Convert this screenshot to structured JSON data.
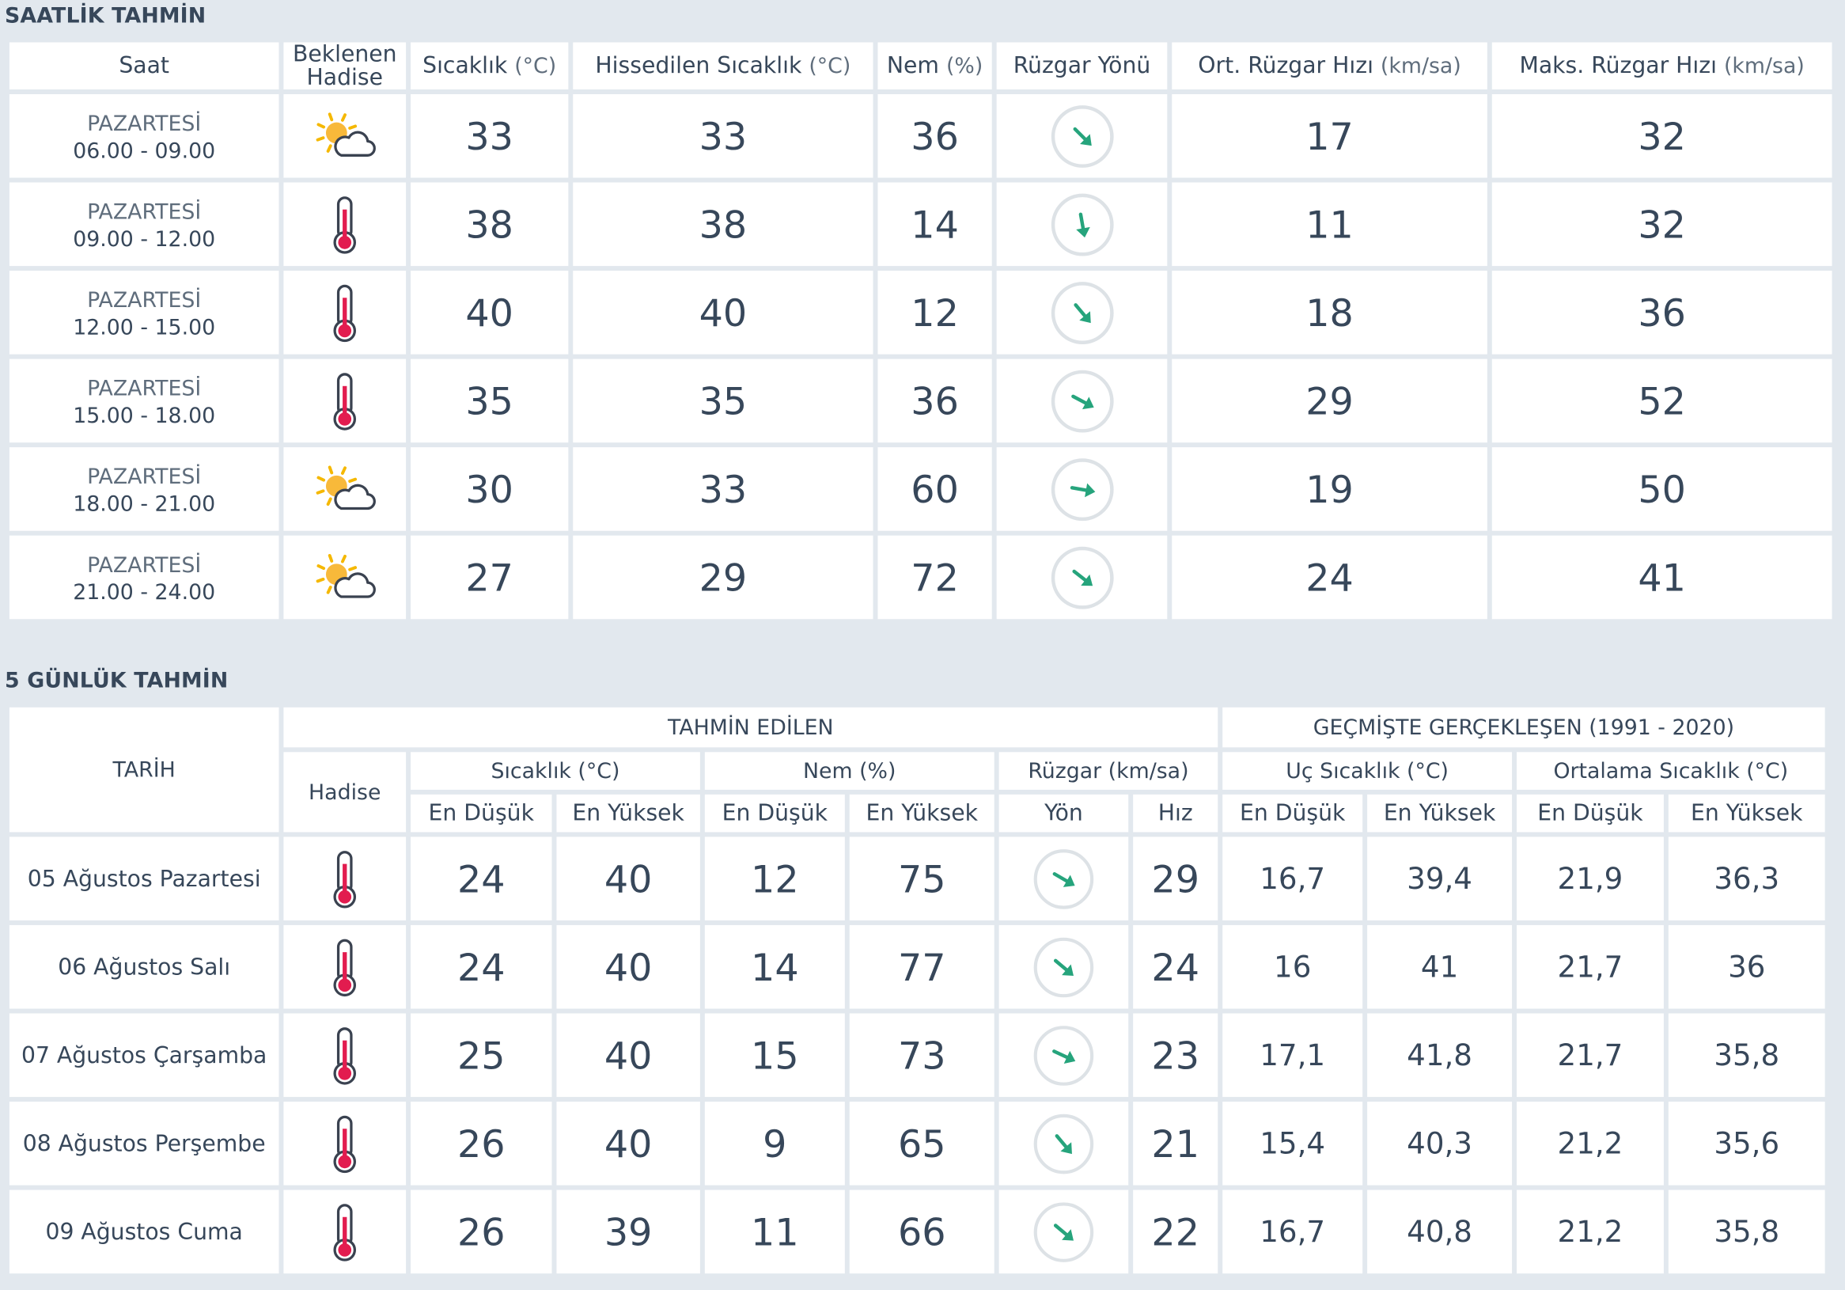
{
  "colors": {
    "temperature": "#d7264b",
    "humidity": "#6154a3",
    "wind": "#24a27a",
    "min": "#277ab0",
    "humidity_min": "#e2980e",
    "background": "#e2e8ee"
  },
  "hourly": {
    "title": "SAATLİK TAHMİN",
    "headers": {
      "saat": "Saat",
      "hadise_line1": "Beklenen",
      "hadise_line2": "Hadise",
      "sicaklik": "Sıcaklık",
      "sicaklik_unit": "(°C)",
      "hissedilen": "Hissedilen Sıcaklık",
      "hissedilen_unit": "(°C)",
      "nem": "Nem",
      "nem_unit": "(%)",
      "ruzgar_yonu": "Rüzgar Yönü",
      "ort_ruzgar": "Ort. Rüzgar Hızı",
      "ort_ruzgar_unit": "(km/sa)",
      "maks_ruzgar": "Maks. Rüzgar Hızı",
      "maks_ruzgar_unit": "(km/sa)"
    },
    "rows": [
      {
        "day": "PAZARTESİ",
        "time": "06.00 - 09.00",
        "icon": "partly-cloudy-icon",
        "temp": "33",
        "feels": "33",
        "humidity": "36",
        "wind_dir_deg": 135,
        "avg_wind": "17",
        "max_wind": "32"
      },
      {
        "day": "PAZARTESİ",
        "time": "09.00 - 12.00",
        "icon": "thermometer-icon",
        "temp": "38",
        "feels": "38",
        "humidity": "14",
        "wind_dir_deg": 170,
        "avg_wind": "11",
        "max_wind": "32"
      },
      {
        "day": "PAZARTESİ",
        "time": "12.00 - 15.00",
        "icon": "thermometer-icon",
        "temp": "40",
        "feels": "40",
        "humidity": "12",
        "wind_dir_deg": 140,
        "avg_wind": "18",
        "max_wind": "36"
      },
      {
        "day": "PAZARTESİ",
        "time": "15.00 - 18.00",
        "icon": "thermometer-icon",
        "temp": "35",
        "feels": "35",
        "humidity": "36",
        "wind_dir_deg": 118,
        "avg_wind": "29",
        "max_wind": "52"
      },
      {
        "day": "PAZARTESİ",
        "time": "18.00 - 21.00",
        "icon": "partly-cloudy-icon",
        "temp": "30",
        "feels": "33",
        "humidity": "60",
        "wind_dir_deg": 100,
        "avg_wind": "19",
        "max_wind": "50"
      },
      {
        "day": "PAZARTESİ",
        "time": "21.00 - 24.00",
        "icon": "partly-cloudy-icon",
        "temp": "27",
        "feels": "29",
        "humidity": "72",
        "wind_dir_deg": 128,
        "avg_wind": "24",
        "max_wind": "41"
      }
    ]
  },
  "daily": {
    "title": "5 GÜNLÜK TAHMİN",
    "headers": {
      "tarih": "TARİH",
      "tahmin_edilen": "TAHMİN EDİLEN",
      "gecmiste": "GEÇMİŞTE GERÇEKLEŞEN (1991 - 2020)",
      "hadise": "Hadise",
      "sicaklik": "Sıcaklık (°C)",
      "nem": "Nem (%)",
      "ruzgar": "Rüzgar (km/sa)",
      "uc_sicaklik": "Uç Sıcaklık (°C)",
      "ortalama_sicaklik": "Ortalama Sıcaklık (°C)",
      "en_dusuk": "En Düşük",
      "en_yuksek": "En Yüksek",
      "yon": "Yön",
      "hiz": "Hız"
    },
    "rows": [
      {
        "date": "05 Ağustos Pazartesi",
        "icon": "thermometer-icon",
        "temp_min": "24",
        "temp_max": "40",
        "hum_min": "12",
        "hum_max": "75",
        "wind_dir_deg": 120,
        "wind_speed": "29",
        "ext_min": "16,7",
        "ext_max": "39,4",
        "avg_min": "21,9",
        "avg_max": "36,3"
      },
      {
        "date": "06 Ağustos Salı",
        "icon": "thermometer-icon",
        "temp_min": "24",
        "temp_max": "40",
        "hum_min": "14",
        "hum_max": "77",
        "wind_dir_deg": 130,
        "wind_speed": "24",
        "ext_min": "16",
        "ext_max": "41",
        "avg_min": "21,7",
        "avg_max": "36"
      },
      {
        "date": "07 Ağustos Çarşamba",
        "icon": "thermometer-icon",
        "temp_min": "25",
        "temp_max": "40",
        "hum_min": "15",
        "hum_max": "73",
        "wind_dir_deg": 115,
        "wind_speed": "23",
        "ext_min": "17,1",
        "ext_max": "41,8",
        "avg_min": "21,7",
        "avg_max": "35,8"
      },
      {
        "date": "08 Ağustos Perşembe",
        "icon": "thermometer-icon",
        "temp_min": "26",
        "temp_max": "40",
        "hum_min": "9",
        "hum_max": "65",
        "wind_dir_deg": 140,
        "wind_speed": "21",
        "ext_min": "15,4",
        "ext_max": "40,3",
        "avg_min": "21,2",
        "avg_max": "35,6"
      },
      {
        "date": "09 Ağustos Cuma",
        "icon": "thermometer-icon",
        "temp_min": "26",
        "temp_max": "39",
        "hum_min": "11",
        "hum_max": "66",
        "wind_dir_deg": 130,
        "wind_speed": "22",
        "ext_min": "16,7",
        "ext_max": "40,8",
        "avg_min": "21,2",
        "avg_max": "35,8"
      }
    ]
  }
}
